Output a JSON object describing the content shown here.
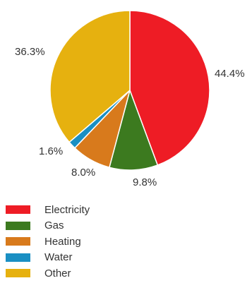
{
  "chart_data": {
    "type": "pie",
    "slices": [
      {
        "label": "Electricity",
        "value": 44.4,
        "value_label": "44.4%",
        "color": "#ee1c25"
      },
      {
        "label": "Gas",
        "value": 9.8,
        "value_label": "9.8%",
        "color": "#3c7a1f"
      },
      {
        "label": "Heating",
        "value": 8.0,
        "value_label": "8.0%",
        "color": "#d87a1c"
      },
      {
        "label": "Water",
        "value": 1.6,
        "value_label": "1.6%",
        "color": "#1a8fc3"
      },
      {
        "label": "Other",
        "value": 36.3,
        "value_label": "36.3%",
        "color": "#e6b10f"
      }
    ],
    "start_angle": "12 o'clock",
    "direction": "clockwise",
    "legend_position": "bottom-left"
  }
}
